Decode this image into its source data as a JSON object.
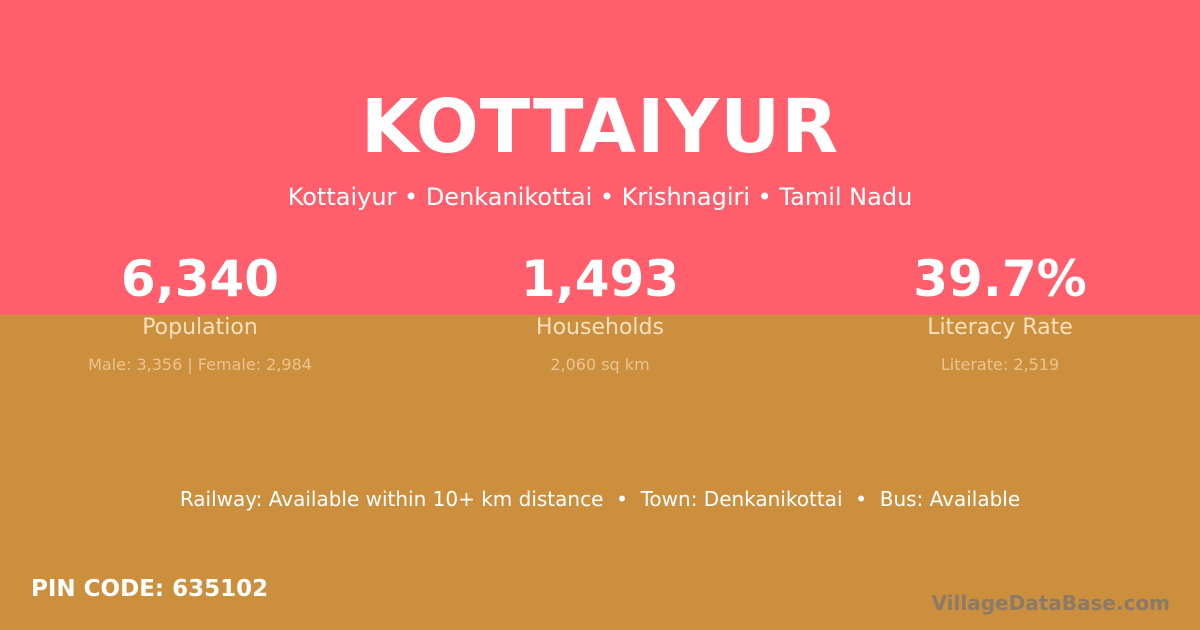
{
  "colors": {
    "top_background": "#ff5f6d",
    "bottom_background": "#cc8f3d"
  },
  "title": "KOTTAIYUR",
  "subtitle": "Kottaiyur • Denkanikottai • Krishnagiri • Tamil Nadu",
  "stats": [
    {
      "value": "6,340",
      "label": "Population",
      "detail": "Male: 3,356 | Female: 2,984"
    },
    {
      "value": "1,493",
      "label": "Households",
      "detail": "2,060 sq km"
    },
    {
      "value": "39.7%",
      "label": "Literacy Rate",
      "detail": "Literate: 2,519"
    }
  ],
  "facts": "Railway: Available within 10+ km distance  •  Town: Denkanikottai  •  Bus: Available",
  "pin_code": "PIN CODE: 635102",
  "logo": "VillageDataBase.com"
}
